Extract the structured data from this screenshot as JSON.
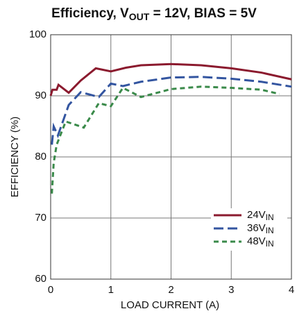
{
  "chart_data": {
    "type": "line",
    "title": [
      "Efficiency, V",
      "OUT",
      " = 12V, BIAS = 5V"
    ],
    "x_label": "LOAD CURRENT (A)",
    "y_label": "EFFICIENCY (%)",
    "xlim": [
      0,
      4
    ],
    "xticks": [
      0,
      1,
      2,
      3,
      4
    ],
    "ylim": [
      60,
      100
    ],
    "yticks": [
      60,
      70,
      80,
      90,
      100
    ],
    "grid": true,
    "legend": "lower right",
    "series": [
      {
        "name": [
          "24V",
          "IN"
        ],
        "color": "#8b1a2e",
        "dash": "solid",
        "x": [
          0,
          0.03,
          0.1,
          0.13,
          0.3,
          0.5,
          0.75,
          1,
          1.25,
          1.5,
          2,
          2.5,
          3,
          3.5,
          4
        ],
        "values": [
          90,
          91,
          91,
          91.8,
          90.5,
          92.5,
          94.5,
          94,
          94.6,
          95,
          95.2,
          95,
          94.5,
          93.8,
          92.7
        ]
      },
      {
        "name": [
          "36V",
          "IN"
        ],
        "color": "#3355a0",
        "dash": "long",
        "x": [
          0.02,
          0.05,
          0.12,
          0.3,
          0.5,
          0.8,
          1,
          1.2,
          1.5,
          2,
          2.5,
          3,
          3.5,
          4
        ],
        "values": [
          82,
          85,
          83.5,
          88.5,
          90.6,
          89.8,
          92,
          91.6,
          92.3,
          93,
          93.1,
          92.8,
          92.3,
          91.5
        ]
      },
      {
        "name": [
          "48V",
          "IN"
        ],
        "color": "#3a8a4a",
        "dash": "short",
        "x": [
          0.02,
          0.05,
          0.1,
          0.25,
          0.55,
          0.8,
          1,
          1.2,
          1.5,
          2,
          2.5,
          3,
          3.5,
          3.8
        ],
        "values": [
          74,
          79,
          82,
          85.8,
          84.8,
          88.8,
          88.3,
          91.3,
          89.8,
          91.1,
          91.5,
          91.3,
          91,
          90.3
        ]
      }
    ]
  }
}
